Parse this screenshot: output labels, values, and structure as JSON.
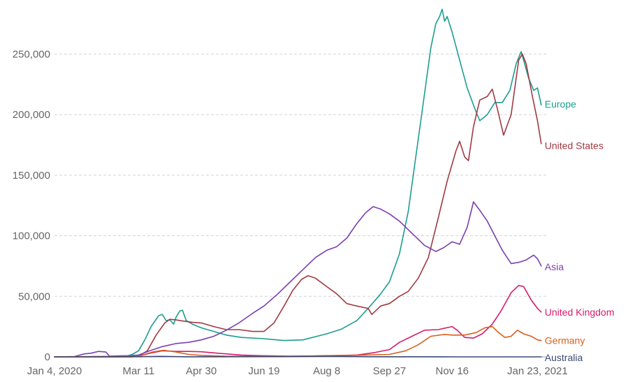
{
  "chart_data": {
    "type": "line",
    "title": "",
    "xlabel": "",
    "ylabel": "",
    "x_range": [
      "2020-01-04",
      "2021-02-02"
    ],
    "ylim": [
      0,
      290000
    ],
    "y_ticks": [
      0,
      50000,
      100000,
      150000,
      200000,
      250000
    ],
    "y_tick_labels": [
      "0",
      "50,000",
      "100,000",
      "150,000",
      "200,000",
      "250,000"
    ],
    "x_ticks": [
      "2020-01-04",
      "2020-03-11",
      "2020-04-30",
      "2020-06-19",
      "2020-08-08",
      "2020-09-27",
      "2020-11-16",
      "2021-01-23"
    ],
    "x_tick_labels": [
      "Jan 4, 2020",
      "Mar 11",
      "Apr 30",
      "Jun 19",
      "Aug 8",
      "Sep 27",
      "Nov 16",
      "Jan 23, 2021"
    ],
    "grid": true,
    "legend": "inline labels at line ends",
    "series": [
      {
        "name": "Europe",
        "color": "#1b9e8f",
        "points": [
          [
            "2020-01-04",
            0
          ],
          [
            "2020-01-25",
            0
          ],
          [
            "2020-02-15",
            0
          ],
          [
            "2020-02-29",
            200
          ],
          [
            "2020-03-06",
            2000
          ],
          [
            "2020-03-11",
            5000
          ],
          [
            "2020-03-16",
            14000
          ],
          [
            "2020-03-21",
            25000
          ],
          [
            "2020-03-27",
            34000
          ],
          [
            "2020-03-30",
            35000
          ],
          [
            "2020-04-02",
            30000
          ],
          [
            "2020-04-05",
            30500
          ],
          [
            "2020-04-08",
            27000
          ],
          [
            "2020-04-10",
            33000
          ],
          [
            "2020-04-13",
            38000
          ],
          [
            "2020-04-15",
            38500
          ],
          [
            "2020-04-18",
            30000
          ],
          [
            "2020-04-23",
            27000
          ],
          [
            "2020-04-30",
            24000
          ],
          [
            "2020-05-10",
            21000
          ],
          [
            "2020-05-20",
            18000
          ],
          [
            "2020-06-01",
            16000
          ],
          [
            "2020-06-19",
            15000
          ],
          [
            "2020-07-05",
            13500
          ],
          [
            "2020-07-20",
            14000
          ],
          [
            "2020-08-08",
            19000
          ],
          [
            "2020-08-20",
            23000
          ],
          [
            "2020-09-01",
            30000
          ],
          [
            "2020-09-10",
            40000
          ],
          [
            "2020-09-20",
            52000
          ],
          [
            "2020-09-27",
            62000
          ],
          [
            "2020-10-05",
            85000
          ],
          [
            "2020-10-12",
            120000
          ],
          [
            "2020-10-18",
            165000
          ],
          [
            "2020-10-24",
            210000
          ],
          [
            "2020-10-30",
            255000
          ],
          [
            "2020-11-03",
            275000
          ],
          [
            "2020-11-06",
            281000
          ],
          [
            "2020-11-08",
            287000
          ],
          [
            "2020-11-10",
            277000
          ],
          [
            "2020-11-12",
            281000
          ],
          [
            "2020-11-16",
            268000
          ],
          [
            "2020-11-22",
            245000
          ],
          [
            "2020-11-28",
            222000
          ],
          [
            "2020-12-04",
            205000
          ],
          [
            "2020-12-08",
            195000
          ],
          [
            "2020-12-14",
            200000
          ],
          [
            "2020-12-20",
            210000
          ],
          [
            "2020-12-26",
            210000
          ],
          [
            "2021-01-01",
            220000
          ],
          [
            "2021-01-06",
            242000
          ],
          [
            "2021-01-10",
            252000
          ],
          [
            "2021-01-12",
            245000
          ],
          [
            "2021-01-16",
            230000
          ],
          [
            "2021-01-20",
            220000
          ],
          [
            "2021-01-23",
            222000
          ],
          [
            "2021-01-26",
            208000
          ]
        ]
      },
      {
        "name": "United States",
        "color": "#a03a42",
        "points": [
          [
            "2020-01-04",
            0
          ],
          [
            "2020-03-06",
            0
          ],
          [
            "2020-03-11",
            500
          ],
          [
            "2020-03-18",
            5000
          ],
          [
            "2020-03-25",
            18000
          ],
          [
            "2020-04-01",
            28000
          ],
          [
            "2020-04-05",
            31000
          ],
          [
            "2020-04-10",
            30500
          ],
          [
            "2020-04-16",
            29500
          ],
          [
            "2020-04-23",
            28500
          ],
          [
            "2020-04-30",
            28000
          ],
          [
            "2020-05-10",
            25000
          ],
          [
            "2020-05-20",
            22500
          ],
          [
            "2020-05-30",
            22500
          ],
          [
            "2020-06-10",
            21000
          ],
          [
            "2020-06-19",
            21000
          ],
          [
            "2020-06-27",
            28000
          ],
          [
            "2020-07-05",
            42000
          ],
          [
            "2020-07-12",
            55000
          ],
          [
            "2020-07-19",
            64000
          ],
          [
            "2020-07-24",
            67000
          ],
          [
            "2020-07-30",
            65000
          ],
          [
            "2020-08-08",
            58000
          ],
          [
            "2020-08-16",
            52000
          ],
          [
            "2020-08-24",
            44000
          ],
          [
            "2020-09-01",
            42000
          ],
          [
            "2020-09-10",
            40000
          ],
          [
            "2020-09-13",
            35000
          ],
          [
            "2020-09-20",
            42000
          ],
          [
            "2020-09-27",
            44000
          ],
          [
            "2020-10-05",
            50000
          ],
          [
            "2020-10-12",
            54000
          ],
          [
            "2020-10-20",
            65000
          ],
          [
            "2020-10-28",
            82000
          ],
          [
            "2020-11-05",
            115000
          ],
          [
            "2020-11-12",
            145000
          ],
          [
            "2020-11-19",
            170000
          ],
          [
            "2020-11-22",
            178000
          ],
          [
            "2020-11-26",
            165000
          ],
          [
            "2020-11-29",
            162000
          ],
          [
            "2020-12-03",
            190000
          ],
          [
            "2020-12-08",
            212000
          ],
          [
            "2020-12-14",
            215000
          ],
          [
            "2020-12-18",
            221000
          ],
          [
            "2020-12-22",
            205000
          ],
          [
            "2020-12-27",
            183000
          ],
          [
            "2021-01-02",
            200000
          ],
          [
            "2021-01-08",
            245000
          ],
          [
            "2021-01-11",
            250000
          ],
          [
            "2021-01-14",
            242000
          ],
          [
            "2021-01-19",
            215000
          ],
          [
            "2021-01-23",
            195000
          ],
          [
            "2021-01-26",
            176000
          ]
        ]
      },
      {
        "name": "Asia",
        "color": "#7b3fb0",
        "points": [
          [
            "2020-01-04",
            0
          ],
          [
            "2020-01-20",
            300
          ],
          [
            "2020-01-28",
            2500
          ],
          [
            "2020-02-02",
            3000
          ],
          [
            "2020-02-08",
            4500
          ],
          [
            "2020-02-14",
            4000
          ],
          [
            "2020-02-17",
            500
          ],
          [
            "2020-02-24",
            800
          ],
          [
            "2020-03-03",
            1000
          ],
          [
            "2020-03-11",
            1500
          ],
          [
            "2020-03-20",
            5000
          ],
          [
            "2020-03-30",
            8500
          ],
          [
            "2020-04-10",
            11000
          ],
          [
            "2020-04-20",
            12000
          ],
          [
            "2020-04-30",
            14000
          ],
          [
            "2020-05-10",
            17000
          ],
          [
            "2020-05-20",
            22000
          ],
          [
            "2020-05-30",
            28000
          ],
          [
            "2020-06-10",
            36000
          ],
          [
            "2020-06-19",
            42000
          ],
          [
            "2020-06-30",
            52000
          ],
          [
            "2020-07-10",
            62000
          ],
          [
            "2020-07-20",
            72000
          ],
          [
            "2020-07-30",
            82000
          ],
          [
            "2020-08-08",
            88000
          ],
          [
            "2020-08-16",
            91000
          ],
          [
            "2020-08-24",
            98000
          ],
          [
            "2020-09-01",
            110000
          ],
          [
            "2020-09-08",
            119000
          ],
          [
            "2020-09-14",
            124000
          ],
          [
            "2020-09-20",
            122000
          ],
          [
            "2020-09-27",
            118000
          ],
          [
            "2020-10-05",
            112000
          ],
          [
            "2020-10-15",
            102000
          ],
          [
            "2020-10-25",
            92000
          ],
          [
            "2020-11-03",
            87000
          ],
          [
            "2020-11-09",
            90000
          ],
          [
            "2020-11-16",
            95000
          ],
          [
            "2020-11-22",
            93000
          ],
          [
            "2020-11-28",
            107000
          ],
          [
            "2020-12-03",
            128000
          ],
          [
            "2020-12-08",
            121000
          ],
          [
            "2020-12-14",
            112000
          ],
          [
            "2020-12-20",
            100000
          ],
          [
            "2020-12-26",
            88000
          ],
          [
            "2021-01-02",
            77000
          ],
          [
            "2021-01-08",
            78000
          ],
          [
            "2021-01-14",
            80000
          ],
          [
            "2021-01-20",
            84000
          ],
          [
            "2021-01-23",
            81000
          ],
          [
            "2021-01-26",
            75000
          ]
        ]
      },
      {
        "name": "United Kingdom",
        "color": "#d81b6a",
        "points": [
          [
            "2020-01-04",
            0
          ],
          [
            "2020-03-11",
            500
          ],
          [
            "2020-03-20",
            3000
          ],
          [
            "2020-03-30",
            5000
          ],
          [
            "2020-04-10",
            4500
          ],
          [
            "2020-04-20",
            4500
          ],
          [
            "2020-04-30",
            4200
          ],
          [
            "2020-05-15",
            2800
          ],
          [
            "2020-06-01",
            1500
          ],
          [
            "2020-06-19",
            900
          ],
          [
            "2020-07-10",
            600
          ],
          [
            "2020-08-08",
            800
          ],
          [
            "2020-09-01",
            1500
          ],
          [
            "2020-09-15",
            3500
          ],
          [
            "2020-09-27",
            6000
          ],
          [
            "2020-10-05",
            12000
          ],
          [
            "2020-10-15",
            17000
          ],
          [
            "2020-10-25",
            22000
          ],
          [
            "2020-11-05",
            22500
          ],
          [
            "2020-11-16",
            25000
          ],
          [
            "2020-11-20",
            22000
          ],
          [
            "2020-11-26",
            16000
          ],
          [
            "2020-12-03",
            15500
          ],
          [
            "2020-12-10",
            19000
          ],
          [
            "2020-12-18",
            27000
          ],
          [
            "2020-12-25",
            38000
          ],
          [
            "2021-01-02",
            53000
          ],
          [
            "2021-01-08",
            59000
          ],
          [
            "2021-01-12",
            58000
          ],
          [
            "2021-01-18",
            47000
          ],
          [
            "2021-01-23",
            40000
          ],
          [
            "2021-01-26",
            37000
          ]
        ]
      },
      {
        "name": "Germany",
        "color": "#d8601c",
        "points": [
          [
            "2020-01-04",
            0
          ],
          [
            "2020-03-11",
            500
          ],
          [
            "2020-03-22",
            4000
          ],
          [
            "2020-03-31",
            5500
          ],
          [
            "2020-04-10",
            4000
          ],
          [
            "2020-04-20",
            2000
          ],
          [
            "2020-04-30",
            1200
          ],
          [
            "2020-05-20",
            600
          ],
          [
            "2020-06-19",
            400
          ],
          [
            "2020-07-20",
            500
          ],
          [
            "2020-08-08",
            1000
          ],
          [
            "2020-09-01",
            1300
          ],
          [
            "2020-09-27",
            2000
          ],
          [
            "2020-10-10",
            5000
          ],
          [
            "2020-10-20",
            10000
          ],
          [
            "2020-10-30",
            17000
          ],
          [
            "2020-11-10",
            18500
          ],
          [
            "2020-11-16",
            18000
          ],
          [
            "2020-11-26",
            18000
          ],
          [
            "2020-12-05",
            20000
          ],
          [
            "2020-12-12",
            24000
          ],
          [
            "2020-12-18",
            25000
          ],
          [
            "2020-12-22",
            21000
          ],
          [
            "2020-12-28",
            16000
          ],
          [
            "2021-01-02",
            17000
          ],
          [
            "2021-01-07",
            22000
          ],
          [
            "2021-01-12",
            19000
          ],
          [
            "2021-01-18",
            17000
          ],
          [
            "2021-01-23",
            14000
          ],
          [
            "2021-01-26",
            13500
          ]
        ]
      },
      {
        "name": "Australia",
        "color": "#3b4a73",
        "points": [
          [
            "2020-01-04",
            0
          ],
          [
            "2020-03-11",
            100
          ],
          [
            "2020-03-28",
            400
          ],
          [
            "2020-04-20",
            50
          ],
          [
            "2020-07-01",
            200
          ],
          [
            "2020-08-08",
            500
          ],
          [
            "2020-09-10",
            100
          ],
          [
            "2020-11-16",
            10
          ],
          [
            "2021-01-26",
            5
          ]
        ]
      }
    ]
  }
}
